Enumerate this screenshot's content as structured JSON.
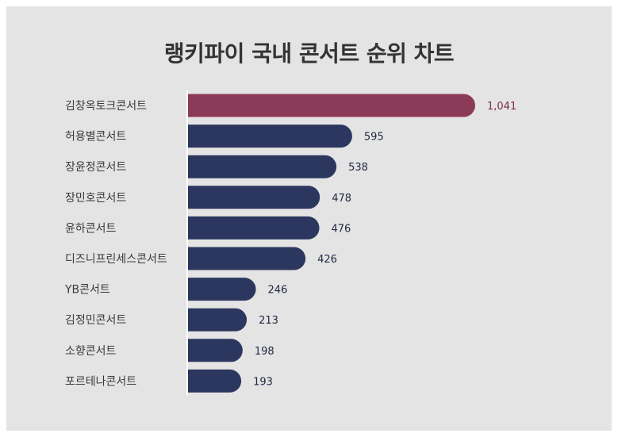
{
  "chart_data": {
    "type": "bar",
    "orientation": "horizontal",
    "title": "랭키파이 국내 콘서트 순위 차트",
    "categories": [
      "김창옥토크콘서트",
      "허용별콘서트",
      "장윤정콘서트",
      "장민호콘서트",
      "윤하콘서트",
      "디즈니프린세스콘서트",
      "YB콘서트",
      "김정민콘서트",
      "소향콘서트",
      "포르테나콘서트"
    ],
    "values": [
      1041,
      595,
      538,
      478,
      476,
      426,
      246,
      213,
      198,
      193
    ],
    "value_labels": [
      "1,041",
      "595",
      "538",
      "478",
      "476",
      "426",
      "246",
      "213",
      "198",
      "193"
    ],
    "xlim": [
      0,
      1041
    ],
    "grid": false,
    "legend": "none",
    "highlight_color": "#8b3a58",
    "bar_color": "#2b375e",
    "highlight_label_color": "#7a2d4a",
    "label_color": "#1f2640",
    "background_color": "#e4e4e4"
  }
}
